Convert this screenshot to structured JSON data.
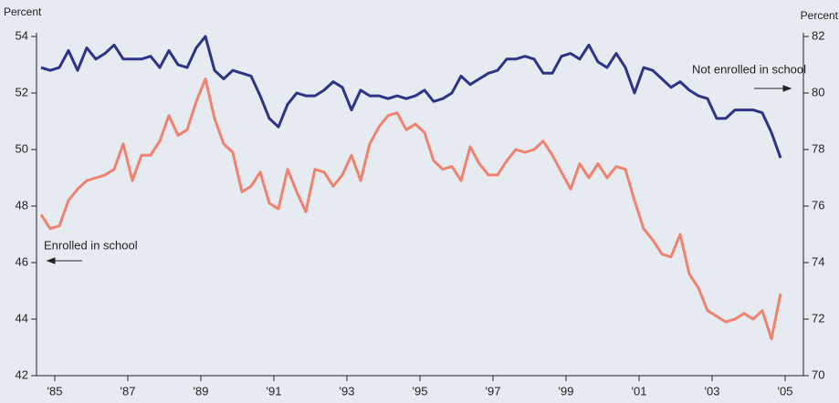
{
  "chart_data": {
    "type": "line",
    "y_label": "Percent",
    "y2_label": "Percent",
    "annotations": [
      "Not enrolled in school",
      "Enrolled in school"
    ],
    "x": [
      1985.125,
      1985.375,
      1985.625,
      1985.875,
      1986.125,
      1986.375,
      1986.625,
      1986.875,
      1987.125,
      1987.375,
      1987.625,
      1987.875,
      1988.125,
      1988.375,
      1988.625,
      1988.875,
      1989.125,
      1989.375,
      1989.625,
      1989.875,
      1990.125,
      1990.375,
      1990.625,
      1990.875,
      1991.125,
      1991.375,
      1991.625,
      1991.875,
      1992.125,
      1992.375,
      1992.625,
      1992.875,
      1993.125,
      1993.375,
      1993.625,
      1993.875,
      1994.125,
      1994.375,
      1994.625,
      1994.875,
      1995.125,
      1995.375,
      1995.625,
      1995.875,
      1996.125,
      1996.375,
      1996.625,
      1996.875,
      1997.125,
      1997.375,
      1997.625,
      1997.875,
      1998.125,
      1998.375,
      1998.625,
      1998.875,
      1999.125,
      1999.375,
      1999.625,
      1999.875,
      2000.125,
      2000.375,
      2000.625,
      2000.875,
      2001.125,
      2001.375,
      2001.625,
      2001.875,
      2002.125,
      2002.375,
      2002.625,
      2002.875,
      2003.125,
      2003.375,
      2003.625,
      2003.875,
      2004.125,
      2004.375,
      2004.625,
      2004.875,
      2005.125,
      2005.375
    ],
    "series": [
      {
        "name": "Not enrolled in school",
        "axis": "y2",
        "color": "#2b3486",
        "values": [
          80.9,
          80.8,
          80.9,
          81.5,
          80.8,
          81.6,
          81.2,
          81.4,
          81.7,
          81.2,
          81.2,
          81.2,
          81.3,
          80.9,
          81.5,
          81.0,
          80.9,
          81.6,
          82.0,
          80.8,
          80.5,
          80.8,
          80.7,
          80.6,
          79.9,
          79.1,
          78.8,
          79.6,
          80.0,
          79.9,
          79.9,
          80.1,
          80.4,
          80.2,
          79.4,
          80.1,
          79.9,
          79.9,
          79.8,
          79.9,
          79.8,
          79.9,
          80.1,
          79.7,
          79.8,
          80.0,
          80.6,
          80.3,
          80.5,
          80.7,
          80.8,
          81.2,
          81.2,
          81.3,
          81.2,
          80.7,
          80.7,
          81.3,
          81.4,
          81.2,
          81.7,
          81.1,
          80.9,
          81.4,
          80.9,
          80.0,
          80.9,
          80.8,
          80.5,
          80.2,
          80.4,
          80.1,
          79.9,
          79.8,
          79.1,
          79.1,
          79.4,
          79.4,
          79.4,
          79.3,
          78.6,
          77.7
        ]
      },
      {
        "name": "Enrolled in school",
        "axis": "y",
        "color": "#f0826f",
        "values": [
          47.7,
          47.2,
          47.3,
          48.2,
          48.6,
          48.9,
          49.0,
          49.1,
          49.3,
          50.2,
          48.9,
          49.8,
          49.8,
          50.3,
          51.2,
          50.5,
          50.7,
          51.7,
          52.5,
          51.1,
          50.2,
          49.9,
          48.5,
          48.7,
          49.2,
          48.1,
          47.9,
          49.3,
          48.5,
          47.8,
          49.3,
          49.2,
          48.7,
          49.1,
          49.8,
          48.9,
          50.2,
          50.8,
          51.2,
          51.3,
          50.7,
          50.9,
          50.6,
          49.6,
          49.3,
          49.4,
          48.9,
          50.1,
          49.5,
          49.1,
          49.1,
          49.6,
          50.0,
          49.9,
          50.0,
          50.3,
          49.8,
          49.2,
          48.6,
          49.5,
          49.0,
          49.5,
          49.0,
          49.4,
          49.3,
          48.2,
          47.2,
          46.8,
          46.3,
          46.2,
          47.0,
          45.6,
          45.1,
          44.3,
          44.1,
          43.9,
          44.0,
          44.2,
          44.0,
          44.3,
          43.3,
          44.9
        ]
      }
    ],
    "xlim": [
      1985,
      2006
    ],
    "xticks": [
      {
        "value": 1985.5,
        "label": "'85"
      },
      {
        "value": 1987.5,
        "label": "'87"
      },
      {
        "value": 1989.5,
        "label": "'89"
      },
      {
        "value": 1991.5,
        "label": "'91"
      },
      {
        "value": 1993.5,
        "label": "'93"
      },
      {
        "value": 1995.5,
        "label": "'95"
      },
      {
        "value": 1997.5,
        "label": "'97"
      },
      {
        "value": 1999.5,
        "label": "'99"
      },
      {
        "value": 2001.5,
        "label": "'01"
      },
      {
        "value": 2003.5,
        "label": "'03"
      },
      {
        "value": 2005.5,
        "label": "'05"
      }
    ],
    "ylim": [
      42,
      54
    ],
    "yticks": [
      42,
      44,
      46,
      48,
      50,
      52,
      54
    ],
    "y2lim": [
      70,
      82
    ],
    "y2ticks": [
      70,
      72,
      74,
      76,
      78,
      80,
      82
    ],
    "background": "#e6ebf1"
  }
}
